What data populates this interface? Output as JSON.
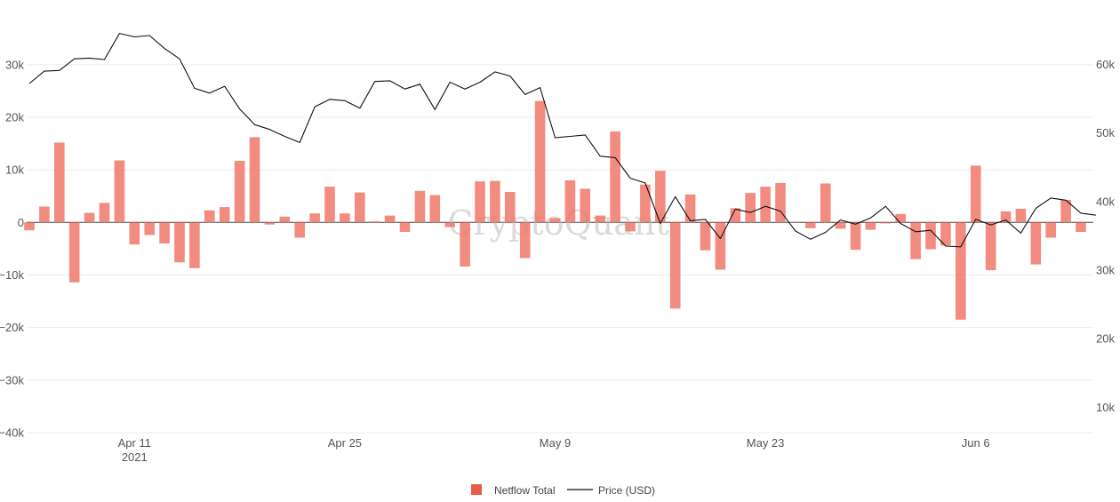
{
  "chart_data": {
    "type": "bar+line",
    "watermark": "CryptoQuant",
    "x_ticks": [
      {
        "day": 9,
        "label": "Apr 11",
        "sub": "2021"
      },
      {
        "day": 23,
        "label": "Apr 25",
        "sub": ""
      },
      {
        "day": 37,
        "label": "May 9",
        "sub": ""
      },
      {
        "day": 51,
        "label": "May 23",
        "sub": ""
      },
      {
        "day": 65,
        "label": "Jun 6",
        "sub": ""
      }
    ],
    "y_left": {
      "min": -40000,
      "max": 35000,
      "ticks": [
        -40000,
        -30000,
        -20000,
        -10000,
        0,
        10000,
        20000,
        30000
      ],
      "labels": [
        "−40k",
        "−30k",
        "−20k",
        "−10k",
        "0",
        "10k",
        "20k",
        "30k"
      ]
    },
    "y_right": {
      "min": 5000,
      "max": 65000,
      "ticks": [
        10000,
        20000,
        30000,
        40000,
        50000,
        60000
      ],
      "labels": [
        "10k",
        "20k",
        "30k",
        "40k",
        "50k",
        "60k"
      ]
    },
    "start_day": 2,
    "series": [
      {
        "name": "Netflow Total",
        "type": "bar",
        "axis": "left",
        "color": "#f0776a",
        "values": [
          -1500,
          3000,
          15200,
          -11400,
          1800,
          3700,
          11800,
          -4200,
          -2400,
          -4000,
          -7600,
          -8700,
          2300,
          2900,
          11700,
          16200,
          -400,
          1100,
          -2900,
          1700,
          6800,
          1700,
          5700,
          200,
          1300,
          -1800,
          6000,
          5200,
          -900,
          -8400,
          7800,
          7900,
          5800,
          -6800,
          23100,
          800,
          8000,
          6400,
          1300,
          17300,
          -1700,
          7200,
          9800,
          -16400,
          5300,
          -5300,
          -9000,
          2700,
          5600,
          6800,
          7500,
          0,
          -1100,
          7400,
          -1200,
          -5200,
          -1400,
          -200,
          1600,
          -7000,
          -5100,
          -4400,
          -18500,
          10800,
          -9100,
          2100,
          2600,
          -8000,
          -2900,
          4300,
          -1800
        ]
      },
      {
        "name": "Price (USD)",
        "type": "line",
        "axis": "right",
        "color": "#111111",
        "values": [
          57200,
          59000,
          59100,
          60800,
          60900,
          60700,
          64500,
          64000,
          64200,
          62300,
          60800,
          56500,
          55800,
          56800,
          53500,
          51200,
          50500,
          49500,
          48600,
          53800,
          54900,
          54700,
          53600,
          57500,
          57600,
          56400,
          57100,
          53400,
          57400,
          56400,
          57400,
          58900,
          58300,
          55600,
          56600,
          49300,
          49500,
          49700,
          46600,
          46400,
          43400,
          42700,
          36800,
          40700,
          37200,
          37400,
          34600,
          38900,
          38400,
          39300,
          38600,
          35700,
          34500,
          35500,
          37300,
          36700,
          37600,
          39300,
          36800,
          35600,
          35800,
          33500,
          33400,
          37400,
          36600,
          37300,
          35400,
          39000,
          40500,
          40200,
          38300,
          38000
        ]
      }
    ],
    "legend": [
      {
        "label": "Netflow Total",
        "symbol": "square",
        "color": "#ea5a48"
      },
      {
        "label": "Price (USD)",
        "symbol": "line",
        "color": "#111111"
      }
    ]
  }
}
